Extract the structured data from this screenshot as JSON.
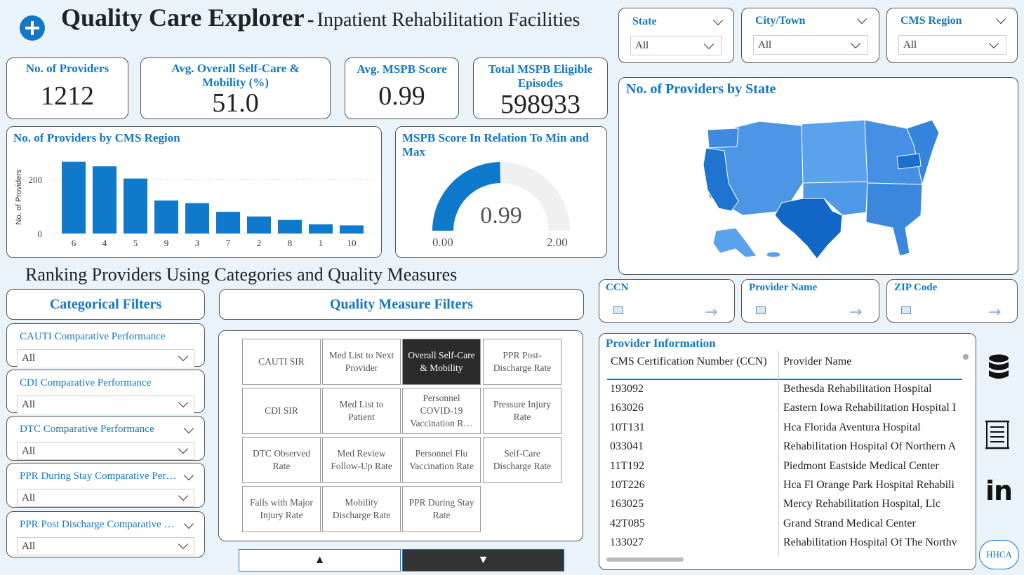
{
  "header": {
    "title": "Quality Care Explorer",
    "separator": "-",
    "subtitle": "Inpatient Rehabilitation Facilities"
  },
  "top_filters": [
    {
      "label": "State",
      "value": "All"
    },
    {
      "label": "City/Town",
      "value": "All"
    },
    {
      "label": "CMS Region",
      "value": "All"
    }
  ],
  "kpis": [
    {
      "title": "No. of Providers",
      "value": "1212"
    },
    {
      "title": "Avg. Overall Self-Care & Mobility (%)",
      "value": "51.0"
    },
    {
      "title": "Avg. MSPB Score",
      "value": "0.99"
    },
    {
      "title": "Total MSPB Eligible Episodes",
      "value": "598933"
    }
  ],
  "region_chart": {
    "title": "No. of Providers by CMS Region",
    "ylabel": "No. of Providers",
    "yticks": [
      "200",
      "0"
    ]
  },
  "chart_data": [
    {
      "type": "bar",
      "title": "No. of Providers by CMS Region",
      "ylabel": "No. of Providers",
      "categories": [
        "6",
        "4",
        "5",
        "9",
        "3",
        "7",
        "2",
        "8",
        "1",
        "10"
      ],
      "values": [
        265,
        248,
        203,
        122,
        112,
        80,
        63,
        50,
        34,
        30
      ],
      "ylim": [
        0,
        290
      ],
      "color": "#0f7acb"
    }
  ],
  "gauge": {
    "title": "MSPB Score In Relation To Min and Max",
    "value": 0.99,
    "value_label": "0.99",
    "min": 0,
    "max": 2,
    "min_label": "0.00",
    "max_label": "2.00"
  },
  "map": {
    "title": "No. of Providers by State"
  },
  "ranking_heading": "Ranking Providers Using Categories and Quality Measures",
  "categorical": {
    "header": "Categorical Filters",
    "filters": [
      {
        "label": "CAUTI Comparative Performance",
        "value": "All"
      },
      {
        "label": "CDI Comparative Performance",
        "value": "All"
      },
      {
        "label": "DTC Comparative Performance",
        "value": "All"
      },
      {
        "label": "PPR During Stay Comparative Performance",
        "value": "All"
      },
      {
        "label": "PPR Post Discharge Comparative Performance",
        "value": "All"
      }
    ]
  },
  "quality": {
    "header": "Quality Measure Filters",
    "tiles": [
      "CAUTI SIR",
      "Med List to Next Provider",
      "Overall Self-Care & Mobility",
      "PPR Post-Discharge Rate",
      "CDI SIR",
      "Med List to Patient",
      "Personnel COVID-19 Vaccination R…",
      "Pressure Injury Rate",
      "DTC Observed Rate",
      "Med Review Follow-Up Rate",
      "Personnel Flu Vaccination Rate",
      "Self-Care Discharge Rate",
      "Falls with Major Injury Rate",
      "Mobility Discharge Rate",
      "PPR During Stay Rate"
    ],
    "selected_index": 2,
    "up_label": "▲",
    "down_label": "▼"
  },
  "search_boxes": [
    {
      "label": "CCN"
    },
    {
      "label": "Provider Name"
    },
    {
      "label": "ZIP Code"
    }
  ],
  "provider_table": {
    "title": "Provider Information",
    "columns": [
      "CMS Certification Number (CCN)",
      "Provider Name"
    ],
    "rows": [
      [
        "193092",
        "Bethesda Rehabilitation Hospital"
      ],
      [
        "163026",
        "Eastern Iowa Rehabilitation Hospital I"
      ],
      [
        "10T131",
        "Hca Florida Aventura Hospital"
      ],
      [
        "033041",
        "Rehabilitation Hospital Of Northern A"
      ],
      [
        "11T192",
        "Piedmont Eastside Medical Center"
      ],
      [
        "10T226",
        "Hca Fl Orange Park Hospital Rehabili"
      ],
      [
        "163025",
        "Mercy Rehabilitation Hospital, Llc"
      ],
      [
        "42T085",
        "Grand Strand Medical Center"
      ],
      [
        "133027",
        "Rehabilitation Hospital Of The Northv"
      ]
    ]
  },
  "side_icons": {
    "badge": "HHCA",
    "linkedin": "in"
  },
  "colors": {
    "accent": "#1277c4",
    "bar": "#0f7acb",
    "gauge_fill": "#0f7acb",
    "gauge_track": "#f0f0f0",
    "selected_tile": "#2b2b2b"
  }
}
